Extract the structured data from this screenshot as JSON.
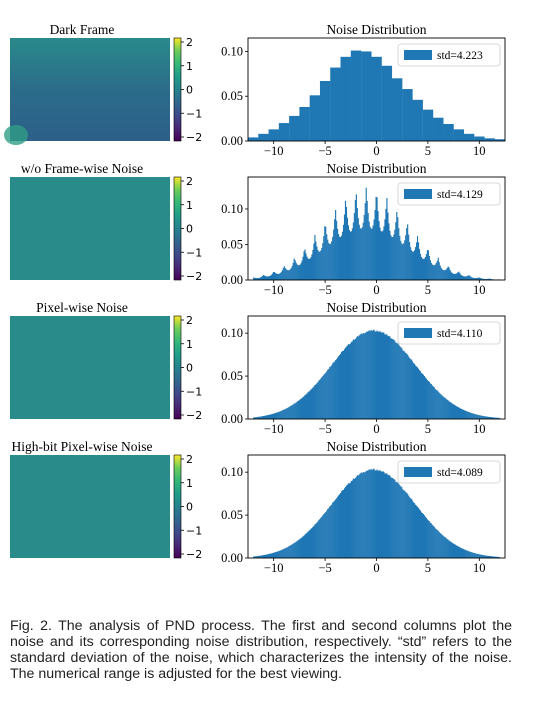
{
  "colors": {
    "bar": "#1f77b4",
    "noise_map": "#2a8b8b",
    "noise_map_dark": "#2b6e8a",
    "axis": "#000000"
  },
  "colorbar": {
    "ticks": [
      "2",
      "1",
      "0",
      "−1",
      "−2"
    ],
    "colormap": "viridis"
  },
  "caption": "Fig. 2. The analysis of PND process. The first and second columns plot the noise and its corresponding noise distribution, respectively. “std” refers to the standard deviation of the noise, which characterizes the intensity of the noise. The numerical range is adjusted for the best viewing.",
  "rows": [
    {
      "image_title": "Dark Frame"
    },
    {
      "image_title": "w/o Frame-wise Noise"
    },
    {
      "image_title": "Pixel-wise Noise"
    },
    {
      "image_title": "High-bit Pixel-wise Noise"
    }
  ],
  "chart_data": [
    {
      "type": "bar",
      "title": "Noise Distribution",
      "legend": "std=4.223",
      "legend_position": "top-right",
      "xlim": [
        -12.5,
        12.5
      ],
      "ylim": [
        0,
        0.115
      ],
      "xticks": [
        "−10",
        "−5",
        "0",
        "5",
        "10"
      ],
      "yticks": [
        "0.00",
        "0.05",
        "0.10"
      ],
      "bin_width": 1,
      "x": [
        -12,
        -11,
        -10,
        -9,
        -8,
        -7,
        -6,
        -5,
        -4,
        -3,
        -2,
        -1,
        0,
        1,
        2,
        3,
        4,
        5,
        6,
        7,
        8,
        9,
        10,
        11,
        12
      ],
      "values": [
        0.004,
        0.008,
        0.013,
        0.02,
        0.028,
        0.038,
        0.051,
        0.067,
        0.082,
        0.094,
        0.101,
        0.1,
        0.094,
        0.084,
        0.07,
        0.058,
        0.046,
        0.035,
        0.026,
        0.019,
        0.013,
        0.008,
        0.005,
        0.003,
        0.002
      ]
    },
    {
      "type": "bar",
      "title": "Noise Distribution",
      "legend": "std=4.129",
      "legend_position": "top-right",
      "xlim": [
        -12.5,
        12.5
      ],
      "ylim": [
        0,
        0.145
      ],
      "xticks": [
        "−10",
        "−5",
        "0",
        "5",
        "10"
      ],
      "yticks": [
        "0.00",
        "0.05",
        "0.10"
      ],
      "distribution": {
        "shape": "comb",
        "mean": -1,
        "std": 4.129,
        "peak": 0.132,
        "comb_period": 1,
        "bins": 250
      }
    },
    {
      "type": "bar",
      "title": "Noise Distribution",
      "legend": "std=4.110",
      "legend_position": "top-right",
      "xlim": [
        -12.5,
        12.5
      ],
      "ylim": [
        0,
        0.12
      ],
      "xticks": [
        "−10",
        "−5",
        "0",
        "5",
        "10"
      ],
      "yticks": [
        "0.00",
        "0.05",
        "0.10"
      ],
      "distribution": {
        "shape": "gaussian",
        "mean": -0.3,
        "std": 4.11,
        "peak": 0.103,
        "bins": 250
      }
    },
    {
      "type": "bar",
      "title": "Noise Distribution",
      "legend": "std=4.089",
      "legend_position": "top-right",
      "xlim": [
        -12.5,
        12.5
      ],
      "ylim": [
        0,
        0.12
      ],
      "xticks": [
        "−10",
        "−5",
        "0",
        "5",
        "10"
      ],
      "yticks": [
        "0.00",
        "0.05",
        "0.10"
      ],
      "distribution": {
        "shape": "gaussian",
        "mean": -0.3,
        "std": 4.089,
        "peak": 0.103,
        "bins": 250
      }
    }
  ]
}
